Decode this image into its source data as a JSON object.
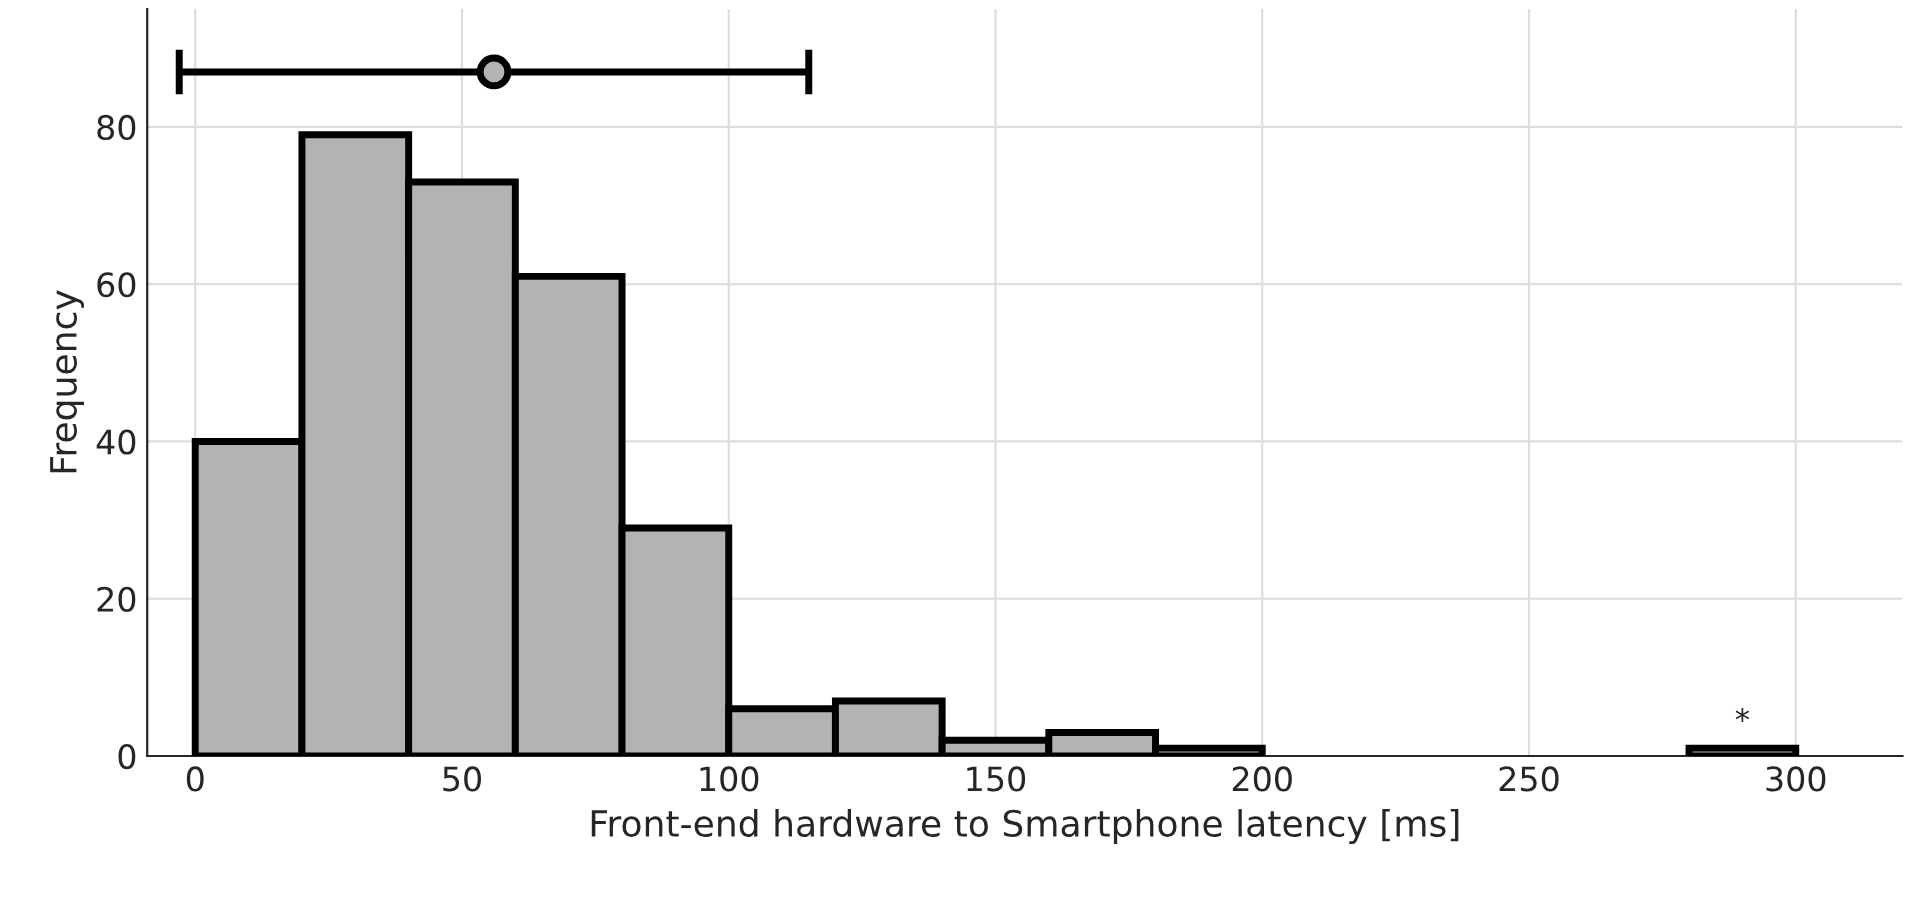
{
  "chart_data": {
    "type": "histogram",
    "xlabel": "Front-end hardware to Smartphone latency [ms]",
    "ylabel": "Frequency",
    "series": [
      {
        "color": "#b3b3b3",
        "bins": [
          0,
          20,
          40,
          60,
          80,
          100,
          120,
          140,
          160,
          180,
          200,
          220,
          240,
          260,
          280,
          300
        ],
        "values": [
          40,
          79,
          73,
          61,
          29,
          6,
          7,
          2,
          3,
          1,
          0,
          0,
          0,
          0,
          1
        ]
      },
      {
        "type": "scatter",
        "color": "#b3b3b3",
        "x": [
          56
        ],
        "values": [
          87
        ],
        "xerrors": [
          [
            -3,
            115
          ]
        ],
        "marker": "circle"
      }
    ],
    "annotations": [
      {
        "text": "*",
        "x": 290,
        "y": 1
      }
    ],
    "xlim": [
      -9,
      320
    ],
    "ylim": [
      0,
      95
    ],
    "xticks": [
      0,
      50,
      100,
      150,
      200,
      250,
      300
    ],
    "yticks": [
      0,
      20,
      40,
      60,
      80
    ],
    "grid": true
  }
}
